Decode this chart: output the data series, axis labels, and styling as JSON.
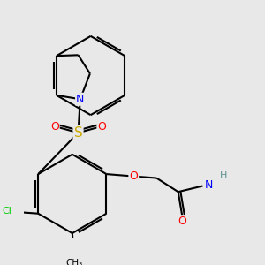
{
  "bg_color": "#e8e8e8",
  "bond_color": "#000000",
  "bond_width": 1.5,
  "dbo": 0.06,
  "atom_colors": {
    "N": "#0000ff",
    "O": "#ff0000",
    "S": "#ccaa00",
    "Cl": "#00cc00",
    "C": "#000000",
    "H": "#5a9090"
  }
}
